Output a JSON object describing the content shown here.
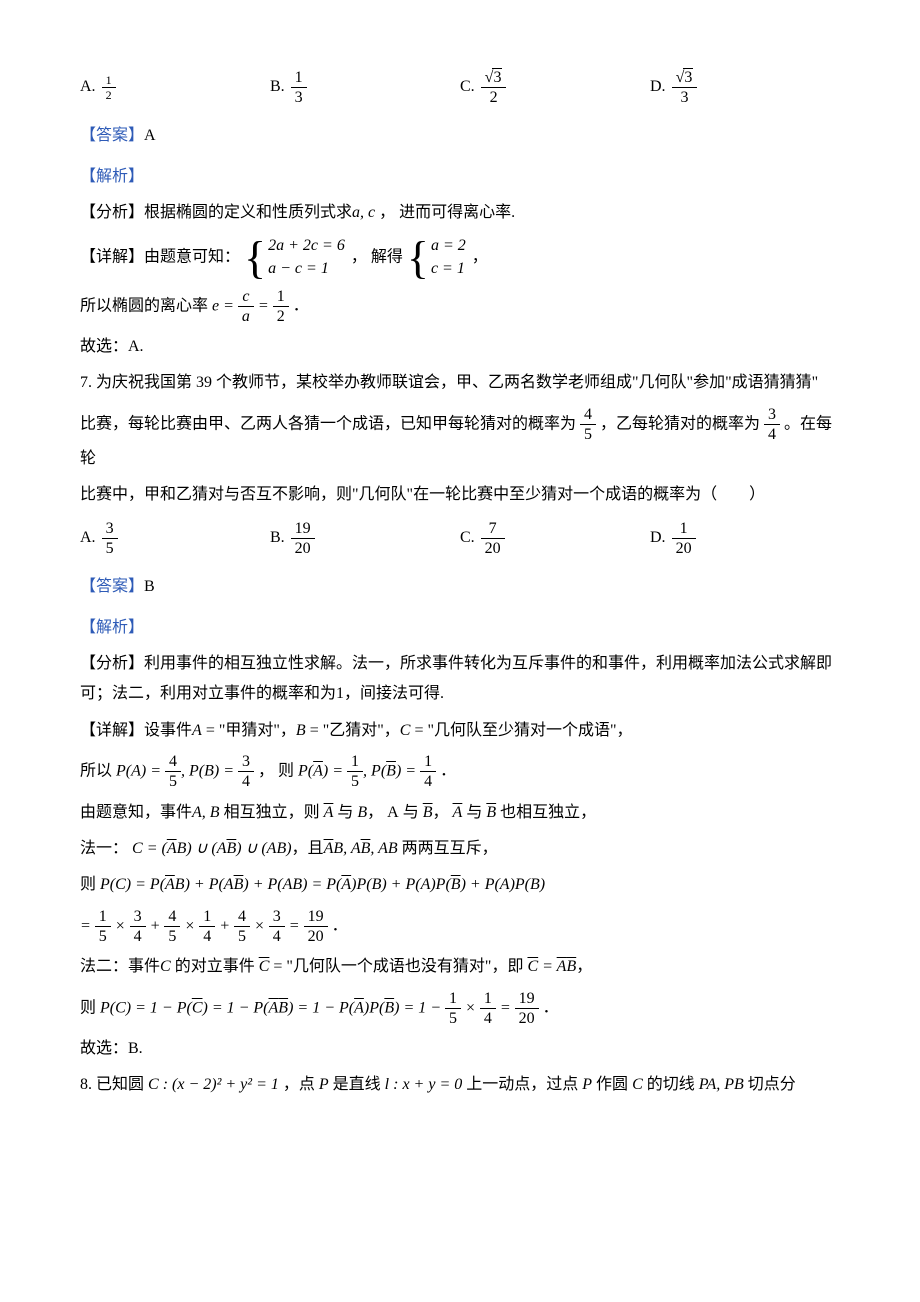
{
  "q6": {
    "choices": {
      "A": {
        "num": "1",
        "den": "2",
        "small": true
      },
      "B": {
        "num": "1",
        "den": "3",
        "small": false
      },
      "C": {
        "num_sqrt": "3",
        "den": "2",
        "small": false
      },
      "D": {
        "num_sqrt": "3",
        "den": "3",
        "small": false
      }
    },
    "answer_label": "【答案】",
    "answer": "A",
    "jiexi_label": "【解析】",
    "analysis_label": "【分析】",
    "analysis_text": "根据椭圆的定义和性质列式求",
    "analysis_math": "a, c",
    "analysis_tail": " ， 进而可得离心率.",
    "detail_label": "【详解】",
    "detail_intro": "由题意可知：",
    "sys1": {
      "r1": "2a + 2c = 6",
      "r2": "a − c = 1"
    },
    "detail_mid": " ， 解得",
    "sys2": {
      "r1": "a = 2",
      "r2": "c = 1"
    },
    "detail_tail": " ，",
    "ecc_text": "所以椭圆的离心率",
    "ecc_eq_lhs": "e =",
    "ecc_frac1": {
      "num": "c",
      "den": "a"
    },
    "ecc_eq_mid": "=",
    "ecc_frac2": {
      "num": "1",
      "den": "2"
    },
    "ecc_end": "．",
    "select": "故选：A."
  },
  "q7": {
    "stem1": "7. 为庆祝我国第 39 个教师节，某校举办教师联谊会，甲、乙两名数学老师组成\"几何队\"参加\"成语猜猜猜\"",
    "stem2a": "比赛，每轮比赛由甲、乙两人各猜一个成语，已知甲每轮猜对的概率为",
    "frac_p": {
      "num": "4",
      "den": "5"
    },
    "stem2b": "，乙每轮猜对的概率为",
    "frac_q": {
      "num": "3",
      "den": "4"
    },
    "stem2c": "。在每轮",
    "stem3": "比赛中，甲和乙猜对与否互不影响，则\"几何队\"在一轮比赛中至少猜对一个成语的概率为（　　）",
    "choices": {
      "A": {
        "num": "3",
        "den": "5"
      },
      "B": {
        "num": "19",
        "den": "20"
      },
      "C": {
        "num": "7",
        "den": "20"
      },
      "D": {
        "num": "1",
        "den": "20"
      }
    },
    "answer_label": "【答案】",
    "answer": "B",
    "jiexi_label": "【解析】",
    "analysis_label": "【分析】",
    "analysis_text": "利用事件的相互独立性求解。法一，所求事件转化为互斥事件的和事件，利用概率加法公式求解即可；法二，利用对立事件的概率和为1，间接法可得.",
    "detail_label": "【详解】",
    "detail1a": "设事件",
    "detail1b": " = \"甲猜对\"，",
    "detail1c": " = \"乙猜对\"，",
    "detail1d": " = \"几何队至少猜对一个成语\"，",
    "line_pa": {
      "pre": "所以",
      "PA_num": "4",
      "PA_den": "5",
      "PB_num": "3",
      "PB_den": "4",
      "mid": "， 则",
      "PAc_num": "1",
      "PAc_den": "5",
      "PBc_num": "1",
      "PBc_den": "4",
      "end": "．"
    },
    "indep_text1": "由题意知，事件",
    "indep_text2": "相互独立，则",
    "indep_text3": "与",
    "indep_text4": "也相互独立，",
    "method1_label": "法一：",
    "method1_mid": "，且",
    "method1_tail": "两两互互斥，",
    "pc_eq_label": "则",
    "calc_line": {
      "t1_num": "1",
      "t1_den": "5",
      "t2_num": "3",
      "t2_den": "4",
      "t3_num": "4",
      "t3_den": "5",
      "t4_num": "1",
      "t4_den": "4",
      "t5_num": "4",
      "t5_den": "5",
      "t6_num": "3",
      "t6_den": "4",
      "res_num": "19",
      "res_den": "20"
    },
    "method2_label": "法二：事件",
    "method2_a": "的对立事件",
    "method2_b": " = \"几何队一个成语也没有猜对\"，即",
    "method2_end": "，",
    "pc2_label": "则",
    "pc2_calc": {
      "t1_num": "1",
      "t1_den": "5",
      "t2_num": "1",
      "t2_den": "4",
      "res_num": "19",
      "res_den": "20"
    },
    "select": "故选：B."
  },
  "q8": {
    "stem": "8. 已知圆",
    "circle": "C : (x − 2)² + y² = 1",
    "mid1": "，点",
    "P": "P",
    "mid2": "是直线",
    "line": "l : x + y = 0",
    "mid3": " 上一动点，过点",
    "mid4": "作圆",
    "C": "C",
    "mid5": "的切线",
    "PAPB": "PA, PB",
    "tail": "切点分"
  }
}
